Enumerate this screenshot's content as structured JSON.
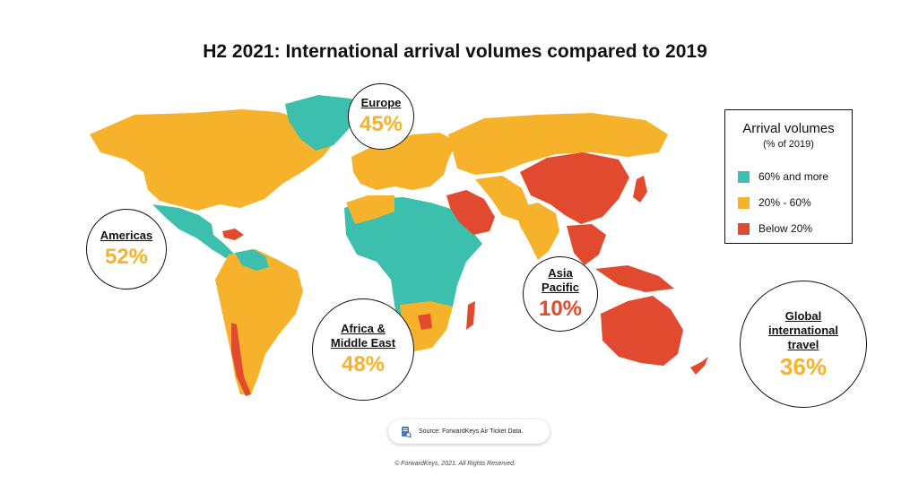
{
  "title": "H2 2021: International arrival volumes compared to 2019",
  "colors": {
    "high": "#3DBFAD",
    "mid": "#F6B22B",
    "low": "#E14A2E"
  },
  "regions": {
    "europe": {
      "label": "Europe",
      "value": "45%"
    },
    "americas": {
      "label": "Americas",
      "value": "52%"
    },
    "africa_me": {
      "label_line1": "Africa &",
      "label_line2": "Middle East",
      "value": "48%"
    },
    "asia_pacific": {
      "label_line1": "Asia",
      "label_line2": "Pacific",
      "value": "10%"
    },
    "global": {
      "label_line1": "Global",
      "label_line2": "international",
      "label_line3": "travel",
      "value": "36%"
    }
  },
  "legend": {
    "title": "Arrival volumes",
    "subtitle": "(% of 2019)",
    "items": [
      {
        "label": "60% and more",
        "color": "#3DBFAD"
      },
      {
        "label": "20% - 60%",
        "color": "#F6B22B"
      },
      {
        "label": "Below 20%",
        "color": "#E14A2E"
      }
    ]
  },
  "source": {
    "text": "Source: ForwardKeys Air Ticket Data.",
    "icon": "document-search-icon"
  },
  "copyright": "© ForwardKeys, 2021. All Rights Reserved."
}
